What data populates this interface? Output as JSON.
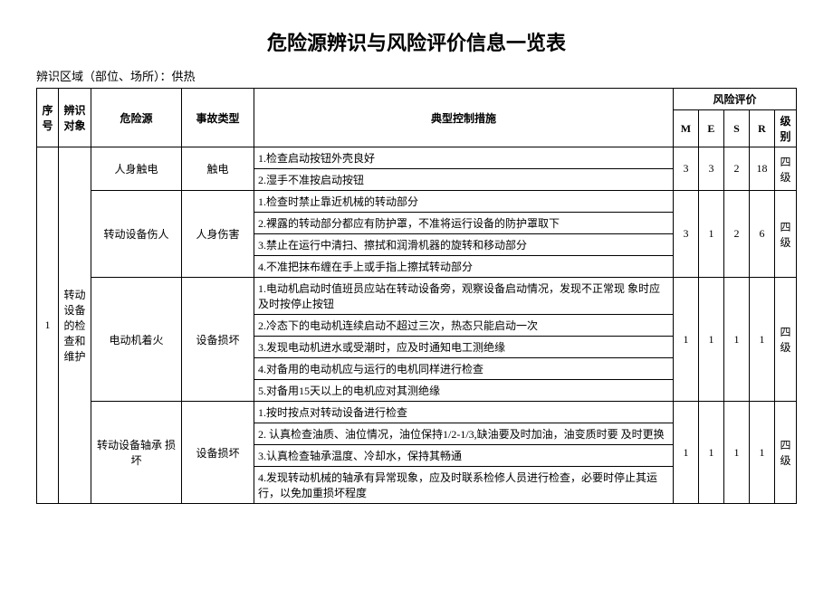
{
  "title": "危险源辨识与风险评价信息一览表",
  "subtitle": "辨识区域（部位、场所）：供热",
  "headers": {
    "seq": "序号",
    "obj": "辨识对象",
    "hazard": "危险源",
    "type": "事故类型",
    "measure": "典型控制措施",
    "eval": "风险评价",
    "M": "M",
    "E": "E",
    "S": "S",
    "R": "R",
    "level": "级别"
  },
  "seq1": "1",
  "obj1": "转动设备的检查和维护",
  "row1": {
    "hazard": "人身触电",
    "type": "触电",
    "m1": "1.检查启动按钮外壳良好",
    "m2": "2.湿手不准按启动按钮",
    "M": "3",
    "E": "3",
    "S": "2",
    "R": "18",
    "level": "四级"
  },
  "row2": {
    "hazard": "转动设备伤人",
    "type": "人身伤害",
    "m1": "1.检查时禁止靠近机械的转动部分",
    "m2": "2.裸露的转动部分都应有防护罩，不准将运行设备的防护罩取下",
    "m3": "3.禁止在运行中清扫、擦拭和润滑机器的旋转和移动部分",
    "m4": "4.不准把抹布缠在手上或手指上擦拭转动部分",
    "M": "3",
    "E": "1",
    "S": "2",
    "R": "6",
    "level": "四级"
  },
  "row3": {
    "hazard": "电动机着火",
    "type": "设备损坏",
    "m1": "1.电动机启动时值班员应站在转动设备旁，观察设备启动情况，发现不正常现  象时应及时按停止按钮",
    "m2": "2.冷态下的电动机连续启动不超过三次，热态只能启动一次",
    "m3": "3.发现电动机进水或受潮时，应及时通知电工测绝缘",
    "m4": "4.对备用的电动机应与运行的电机同样进行检查",
    "m5": "5.对备用15天以上的电机应对其测绝缘",
    "M": "1",
    "E": "1",
    "S": "1",
    "R": "1",
    "level": "四级"
  },
  "row4": {
    "hazard": "转动设备轴承  损坏",
    "type": "设备损坏",
    "m1": "1.按时按点对转动设备进行检查",
    "m2": "2. 认真检查油质、油位情况，油位保持1/2-1/3,缺油要及时加油，油变质时要  及时更换",
    "m3": "3.认真检查轴承温度、冷却水，保持其畅通",
    "m4": "4.发现转动机械的轴承有异常现象，应及时联系检修人员进行检查，必要时停止其运行，以免加重损坏程度",
    "M": "1",
    "E": "1",
    "S": "1",
    "R": "1",
    "level": "四级"
  }
}
